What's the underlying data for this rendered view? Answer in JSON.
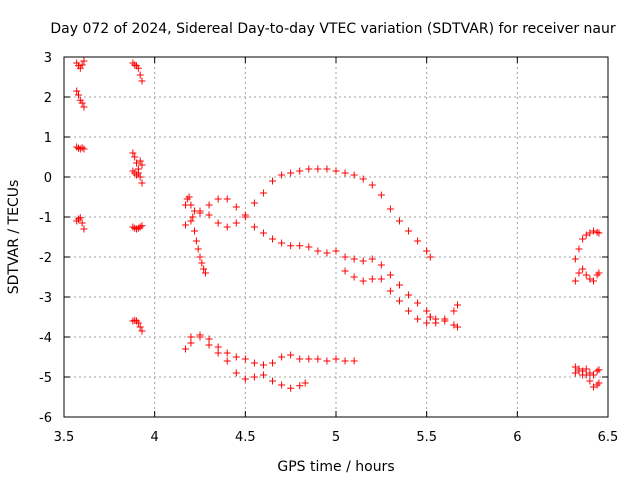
{
  "chart_data": {
    "type": "scatter",
    "title": "Day 072 of 2024, Sidereal Day-to-day VTEC variation (SDTVAR) for receiver naur",
    "xlabel": "GPS time / hours",
    "ylabel": "SDTVAR / TECUs",
    "xlim": [
      3.5,
      6.5
    ],
    "ylim": [
      -6,
      3
    ],
    "xticks": [
      3.5,
      4,
      4.5,
      5,
      5.5,
      6,
      6.5
    ],
    "xtick_labels": [
      "3.5",
      "4",
      "4.5",
      "5",
      "5.5",
      "6",
      "6.5"
    ],
    "yticks": [
      -6,
      -5,
      -4,
      -3,
      -2,
      -1,
      0,
      1,
      2,
      3
    ],
    "ytick_labels": [
      "-6",
      "-5",
      "-4",
      "-3",
      "-2",
      "-1",
      "0",
      "1",
      "2",
      "3"
    ],
    "grid": true,
    "marker": "+",
    "color": "#ff0000",
    "series": [
      {
        "name": "s1",
        "x": [
          3.57,
          3.58,
          3.59,
          3.6,
          3.61
        ],
        "y": [
          2.85,
          2.78,
          2.72,
          2.8,
          2.9
        ]
      },
      {
        "name": "s2",
        "x": [
          3.57,
          3.58,
          3.59,
          3.6,
          3.61
        ],
        "y": [
          2.15,
          2.05,
          1.92,
          1.85,
          1.75
        ]
      },
      {
        "name": "s3",
        "x": [
          3.57,
          3.58,
          3.59,
          3.6,
          3.61
        ],
        "y": [
          0.75,
          0.72,
          0.7,
          0.73,
          0.7
        ]
      },
      {
        "name": "s4",
        "x": [
          3.57,
          3.58,
          3.59,
          3.6,
          3.61
        ],
        "y": [
          -1.1,
          -1.05,
          -1.02,
          -1.15,
          -1.3
        ]
      },
      {
        "name": "s5",
        "x": [
          3.88,
          3.89,
          3.9,
          3.91,
          3.92,
          3.93
        ],
        "y": [
          2.85,
          2.8,
          2.78,
          2.72,
          2.55,
          2.4
        ]
      },
      {
        "name": "s6",
        "x": [
          3.88,
          3.89,
          3.9,
          3.91,
          3.92,
          3.93
        ],
        "y": [
          0.6,
          0.5,
          0.35,
          0.2,
          0.4,
          0.3
        ]
      },
      {
        "name": "s7",
        "x": [
          3.88,
          3.89,
          3.9,
          3.91,
          3.92,
          3.93
        ],
        "y": [
          0.15,
          0.1,
          0.05,
          0.1,
          0.0,
          -0.15
        ]
      },
      {
        "name": "s8",
        "x": [
          3.88,
          3.89,
          3.9,
          3.91,
          3.92,
          3.93
        ],
        "y": [
          -1.25,
          -1.28,
          -1.3,
          -1.28,
          -1.25,
          -1.22
        ]
      },
      {
        "name": "s9",
        "x": [
          3.88,
          3.89,
          3.9,
          3.91,
          3.92,
          3.93
        ],
        "y": [
          -3.6,
          -3.58,
          -3.6,
          -3.65,
          -3.75,
          -3.85
        ]
      },
      {
        "name": "s10",
        "x": [
          4.17,
          4.18,
          4.19,
          4.2,
          4.21,
          4.22,
          4.23,
          4.24,
          4.25,
          4.26,
          4.27,
          4.28
        ],
        "y": [
          -0.7,
          -0.55,
          -0.5,
          -0.7,
          -1.0,
          -1.35,
          -1.6,
          -1.8,
          -2.0,
          -2.15,
          -2.3,
          -2.4
        ]
      },
      {
        "name": "s11",
        "x": [
          4.17,
          4.2,
          4.25,
          4.3,
          4.35,
          4.4,
          4.45,
          4.5,
          4.55,
          4.6,
          4.65,
          4.7,
          4.75,
          4.8,
          4.85,
          4.9,
          4.95,
          5.0,
          5.05,
          5.1,
          5.15,
          5.2,
          5.25,
          5.3,
          5.35,
          5.4,
          5.45,
          5.5,
          5.52
        ],
        "y": [
          -1.2,
          -1.1,
          -0.9,
          -0.7,
          -0.55,
          -0.55,
          -0.75,
          -1.0,
          -1.25,
          -1.4,
          -1.55,
          -1.65,
          -1.72,
          -1.72,
          -1.75,
          -1.85,
          -1.9,
          -1.85,
          -2.0,
          -2.05,
          -2.1,
          -2.05,
          -2.2,
          -2.45,
          -2.7,
          -2.95,
          -3.15,
          -3.35,
          -3.5
        ]
      },
      {
        "name": "s12",
        "x": [
          4.22,
          4.25,
          4.3,
          4.35,
          4.4,
          4.45,
          4.5,
          4.55,
          4.6,
          4.65,
          4.7,
          4.75,
          4.8,
          4.85,
          4.9,
          4.95,
          5.0,
          5.05,
          5.1,
          5.15,
          5.2,
          5.25,
          5.3,
          5.35,
          5.4,
          5.45,
          5.5,
          5.52
        ],
        "y": [
          -0.85,
          -0.85,
          -0.95,
          -1.15,
          -1.25,
          -1.15,
          -0.95,
          -0.65,
          -0.4,
          -0.1,
          0.05,
          0.1,
          0.15,
          0.2,
          0.2,
          0.2,
          0.15,
          0.1,
          0.05,
          -0.05,
          -0.2,
          -0.45,
          -0.8,
          -1.1,
          -1.35,
          -1.6,
          -1.85,
          -2.0
        ]
      },
      {
        "name": "s13",
        "x": [
          4.2,
          4.25,
          4.3,
          4.35,
          4.4,
          4.45,
          4.5,
          4.55,
          4.6,
          4.65,
          4.7,
          4.75,
          4.8,
          4.85,
          4.9,
          4.95,
          5.0,
          5.05,
          5.1
        ],
        "y": [
          -4.0,
          -3.95,
          -4.05,
          -4.25,
          -4.4,
          -4.5,
          -4.55,
          -4.65,
          -4.7,
          -4.65,
          -4.5,
          -4.45,
          -4.55,
          -4.55,
          -4.55,
          -4.6,
          -4.55,
          -4.6,
          -4.6
        ]
      },
      {
        "name": "s14",
        "x": [
          4.17,
          4.2,
          4.25,
          4.3,
          4.35,
          4.4,
          4.45,
          4.5,
          4.55,
          4.6,
          4.65,
          4.7,
          4.75,
          4.8,
          4.83
        ],
        "y": [
          -4.3,
          -4.15,
          -4.0,
          -4.2,
          -4.4,
          -4.6,
          -4.9,
          -5.05,
          -5.0,
          -4.95,
          -5.1,
          -5.2,
          -5.28,
          -5.22,
          -5.15
        ]
      },
      {
        "name": "s15",
        "x": [
          5.05,
          5.1,
          5.15,
          5.2,
          5.25,
          5.3,
          5.35,
          5.4,
          5.45,
          5.5,
          5.55,
          5.6,
          5.65,
          5.67
        ],
        "y": [
          -2.35,
          -2.5,
          -2.6,
          -2.55,
          -2.55,
          -2.85,
          -3.1,
          -3.35,
          -3.55,
          -3.65,
          -3.65,
          -3.55,
          -3.35,
          -3.2
        ]
      },
      {
        "name": "s16",
        "x": [
          5.52,
          5.55,
          5.6,
          5.65,
          5.67
        ],
        "y": [
          -3.5,
          -3.55,
          -3.6,
          -3.7,
          -3.75
        ]
      },
      {
        "name": "s17",
        "x": [
          6.32,
          6.34,
          6.36,
          6.38,
          6.4,
          6.42,
          6.44,
          6.45
        ],
        "y": [
          -2.05,
          -1.8,
          -1.55,
          -1.45,
          -1.4,
          -1.35,
          -1.38,
          -1.4
        ]
      },
      {
        "name": "s18",
        "x": [
          6.32,
          6.34,
          6.36,
          6.38,
          6.4,
          6.42,
          6.44,
          6.45
        ],
        "y": [
          -2.6,
          -2.4,
          -2.3,
          -2.45,
          -2.55,
          -2.6,
          -2.45,
          -2.4
        ]
      },
      {
        "name": "s19",
        "x": [
          6.32,
          6.34,
          6.36,
          6.38,
          6.4,
          6.42,
          6.44,
          6.45
        ],
        "y": [
          -4.75,
          -4.85,
          -4.95,
          -4.8,
          -4.9,
          -4.95,
          -4.85,
          -4.82
        ]
      },
      {
        "name": "s20",
        "x": [
          6.32,
          6.34,
          6.36,
          6.38,
          6.4,
          6.42,
          6.44,
          6.45
        ],
        "y": [
          -4.9,
          -4.8,
          -4.85,
          -4.95,
          -5.1,
          -5.25,
          -5.2,
          -5.15
        ]
      }
    ]
  }
}
